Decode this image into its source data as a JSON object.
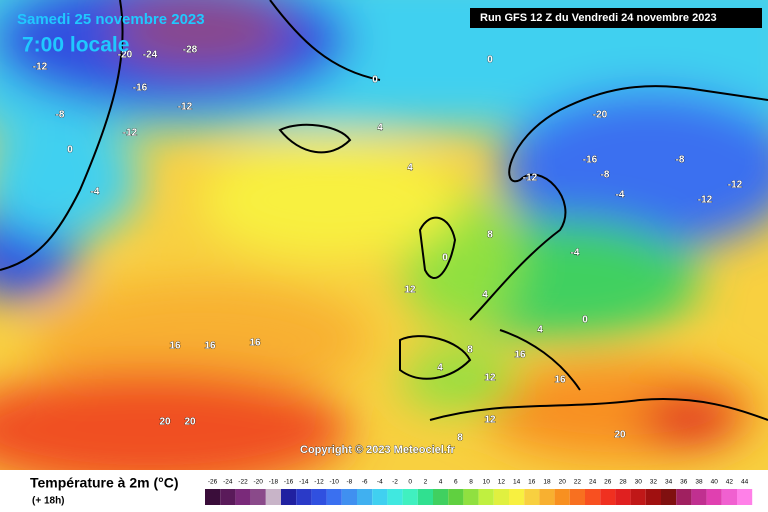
{
  "header": {
    "date": "Samedi 25 novembre 2023",
    "time": "7:00 locale",
    "run": "Run GFS 12 Z du Vendredi 24 novembre 2023"
  },
  "copyright": "Copyright © 2023 Meteociel.fr",
  "legend": {
    "title": "Température à 2m (°C)",
    "lead": "(+ 18h)",
    "ticks": [
      -26,
      -24,
      -22,
      -20,
      -18,
      -16,
      -14,
      -12,
      -10,
      -8,
      -6,
      -4,
      -2,
      0,
      2,
      4,
      6,
      8,
      10,
      12,
      14,
      16,
      18,
      20,
      22,
      24,
      26,
      28,
      30,
      32,
      34,
      36,
      38,
      40,
      42,
      44
    ],
    "colors": [
      "#3a0d3a",
      "#5a1a5a",
      "#7a2a7a",
      "#8a4a8a",
      "#c8b4c8",
      "#2020a0",
      "#2a3ac8",
      "#3050e0",
      "#3a70f0",
      "#4090f0",
      "#40b0f0",
      "#40d0f0",
      "#40e8e0",
      "#40f0c0",
      "#30e090",
      "#40d060",
      "#60d040",
      "#90e040",
      "#c0f040",
      "#e0f040",
      "#f8f040",
      "#f8d040",
      "#f8b030",
      "#f89020",
      "#f87020",
      "#f85020",
      "#f03020",
      "#e02020",
      "#c01818",
      "#a01010",
      "#801010",
      "#a02060",
      "#c03090",
      "#e040b0",
      "#f060d0",
      "#ff80e8"
    ]
  },
  "map": {
    "labels": [
      "-28",
      "-24",
      "-20",
      "-16",
      "-12",
      "-12",
      "-12",
      "-8",
      "-4",
      "0",
      "0",
      "0",
      "4",
      "4",
      "-4",
      "-8",
      "-12",
      "-16",
      "-20",
      "-12",
      "-12",
      "-8",
      "-4",
      "0",
      "4",
      "8",
      "12",
      "16",
      "16",
      "16",
      "20",
      "20",
      "8",
      "4",
      "12",
      "16",
      "20",
      "16",
      "12",
      "8",
      "4",
      "0"
    ]
  }
}
